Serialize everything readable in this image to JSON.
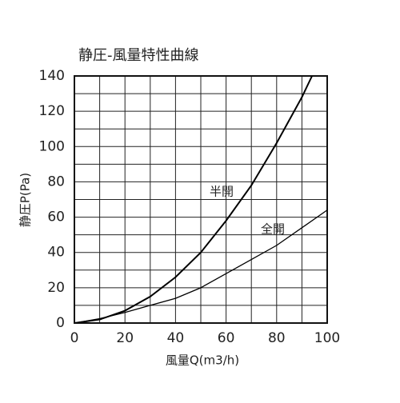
{
  "chart_data": {
    "type": "line",
    "title": "静圧-風量特性曲線",
    "x_label": "風量Q(m3/h)",
    "y_label": "静圧P(Pa)",
    "series": [
      {
        "name": "半開",
        "color": "#000000",
        "x": [
          0,
          10,
          20,
          30,
          40,
          50,
          60,
          70,
          80,
          90,
          94
        ],
        "values": [
          0,
          2,
          7,
          15,
          26,
          40,
          58,
          78,
          102,
          128,
          140
        ]
      },
      {
        "name": "全開",
        "color": "#000000",
        "x": [
          0,
          10,
          20,
          30,
          40,
          50,
          60,
          70,
          80,
          90,
          100
        ],
        "values": [
          0,
          2.5,
          6,
          10,
          14,
          20,
          28,
          36,
          44,
          54,
          64
        ]
      }
    ],
    "xlim": [
      0,
      100
    ],
    "xticks": [
      0,
      20,
      40,
      60,
      80,
      100
    ],
    "ylim": [
      0,
      140
    ],
    "yticks": [
      0,
      20,
      40,
      60,
      80,
      100,
      120,
      140
    ],
    "grid": true
  }
}
